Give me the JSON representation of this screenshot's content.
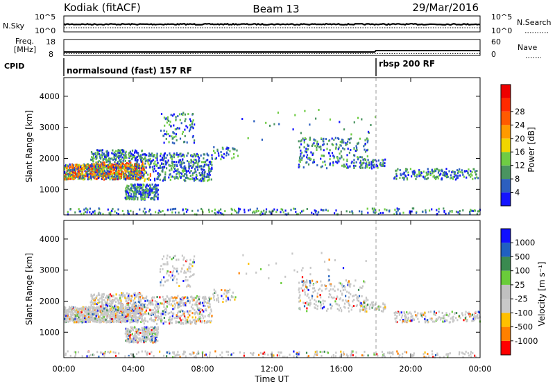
{
  "header": {
    "left": "Kodiak (fitACF)",
    "center": "Beam 13",
    "right": "29/Mar/2016"
  },
  "top_panels": {
    "noise": {
      "left_label": "N.Sky",
      "right_label": "N.Search",
      "left_ticks": [
        "10^5",
        "10^0"
      ],
      "right_ticks": [
        "10^5",
        "10^0"
      ]
    },
    "freq": {
      "left_label_1": "Freq.",
      "left_label_2": "[MHz]",
      "right_label": "Nave",
      "left_ticks": [
        "18",
        "8"
      ],
      "right_ticks": [
        "60",
        "0"
      ]
    },
    "cpid": {
      "label": "CPID",
      "modes": [
        {
          "text": "normalsound (fast) 157 RF",
          "start_hour": 0.0
        },
        {
          "text": "rbsp 200 RF",
          "start_hour": 18.0
        }
      ]
    }
  },
  "chart_data": [
    {
      "type": "heatmap",
      "name": "power",
      "ylabel": "Slant Range [km]",
      "yticks": [
        1000,
        2000,
        3000,
        4000
      ],
      "ylim": [
        180,
        4600
      ],
      "xlim": [
        0,
        24
      ],
      "colorbar_label": "Power [dB]",
      "colorbar_ticks": [
        "4",
        "8",
        "12",
        "16",
        "20",
        "24",
        "28"
      ],
      "colorbar_colors": [
        "#1414ff",
        "#2c5fbf",
        "#4a9460",
        "#6fcc44",
        "#f0d600",
        "#ff9a00",
        "#ff5a00",
        "#ff2a00",
        "#ee0000"
      ],
      "dashed_marker_hour": 18.0
    },
    {
      "type": "heatmap",
      "name": "velocity",
      "ylabel": "Slant Range [km]",
      "xlabel": "Time UT",
      "yticks": [
        1000,
        2000,
        3000,
        4000
      ],
      "ylim": [
        180,
        4600
      ],
      "xlim": [
        0,
        24
      ],
      "xticks": [
        "00:00",
        "04:00",
        "08:00",
        "12:00",
        "16:00",
        "20:00",
        "00:00"
      ],
      "colorbar_label": "Velocity [m s⁻¹]",
      "colorbar_ticks": [
        "1000",
        "500",
        "100",
        "25",
        "-25",
        "-100",
        "-500",
        "-1000"
      ],
      "colorbar_colors": [
        "#1010ff",
        "#2060c0",
        "#3a8a50",
        "#6acc3a",
        "#c0c0c0",
        "#c8c8c8",
        "#ffc000",
        "#ff8000",
        "#ff0000"
      ],
      "dashed_marker_hour": 18.0
    }
  ]
}
